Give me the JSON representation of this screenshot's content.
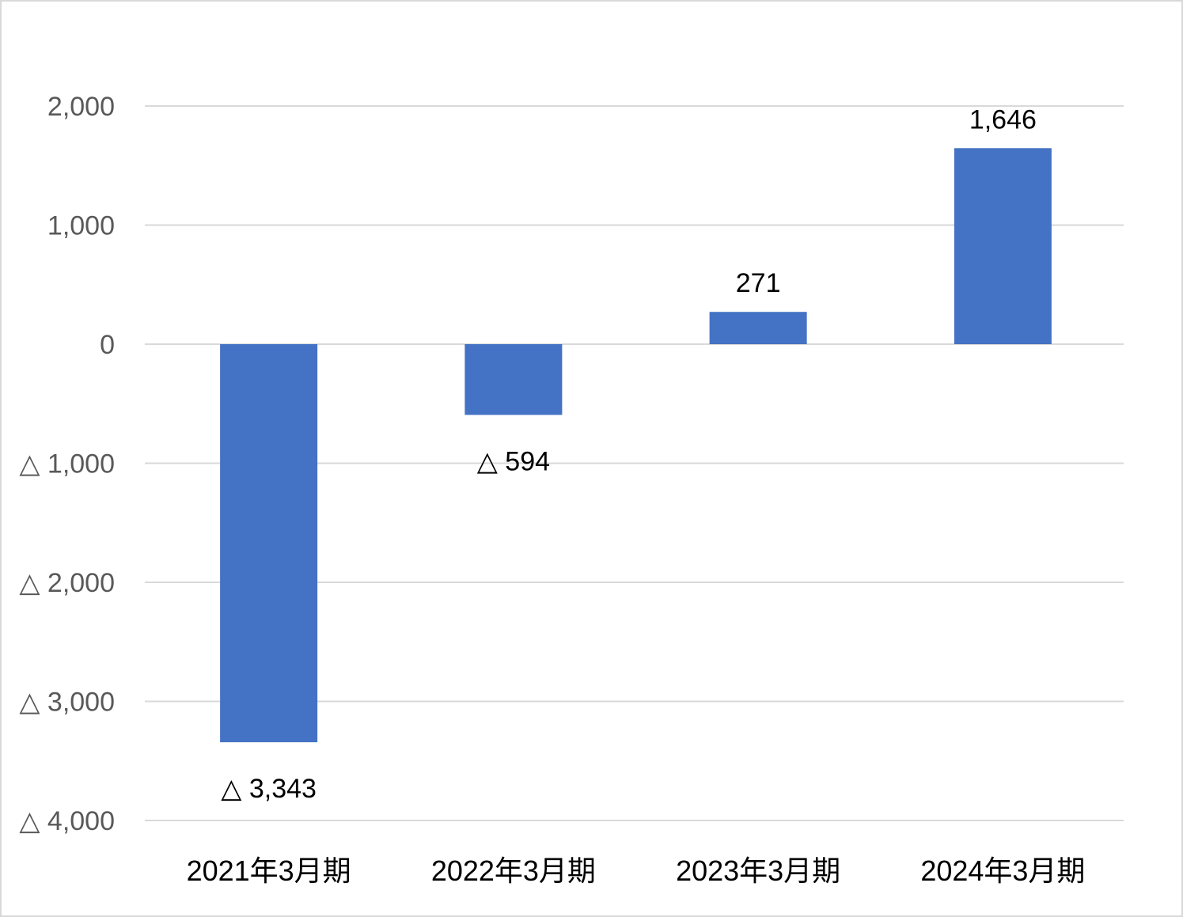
{
  "chart_data": {
    "type": "bar",
    "title": "",
    "xlabel": "",
    "ylabel": "",
    "categories": [
      "2021年3月期",
      "2022年3月期",
      "2023年3月期",
      "2024年3月期"
    ],
    "values": [
      -3343,
      -594,
      271,
      1646
    ],
    "data_labels": [
      "△ 3,343",
      "△ 594",
      "271",
      "1,646"
    ],
    "ylim": [
      -4000,
      2000
    ],
    "yticks": [
      2000,
      1000,
      0,
      -1000,
      -2000,
      -3000,
      -4000
    ],
    "ytick_labels": [
      "2,000",
      "1,000",
      "0",
      "△ 1,000",
      "△ 2,000",
      "△ 3,000",
      "△ 4,000"
    ],
    "grid": true,
    "legend": "none",
    "colors": {
      "bar": "#4472c4",
      "grid": "#d9d9d9",
      "tick_text": "#595959",
      "label_text": "#000000"
    }
  }
}
